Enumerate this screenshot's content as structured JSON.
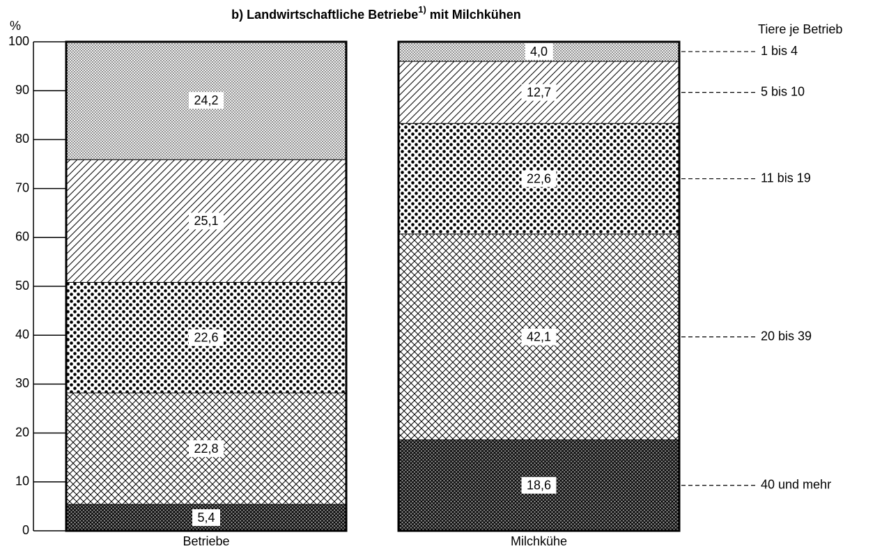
{
  "chart_data": {
    "type": "stacked_bar",
    "title_parts": [
      "b) Landwirtschaftliche Betriebe",
      "1)",
      "mit Milchkühen"
    ],
    "ylabel": "%",
    "legend_title": "Tiere je Betrieb",
    "categories": [
      "Betriebe",
      "Milchkühe"
    ],
    "series": [
      {
        "name": "40 und mehr",
        "color": "#000000",
        "values": [
          5.4,
          18.6
        ],
        "value_labels": [
          "5,4",
          "18,6"
        ]
      },
      {
        "name": "20 bis 39",
        "color": "#000000",
        "values": [
          22.8,
          42.1
        ],
        "value_labels": [
          "22,8",
          "42,1"
        ]
      },
      {
        "name": "11 bis 19",
        "color": "#000000",
        "values": [
          22.6,
          22.6
        ],
        "value_labels": [
          "22,6",
          "22,6"
        ]
      },
      {
        "name": "5 bis 10",
        "color": "#000000",
        "values": [
          25.1,
          12.7
        ],
        "value_labels": [
          "25,1",
          "12,7"
        ]
      },
      {
        "name": "1 bis 4",
        "color": "#000000",
        "values": [
          24.2,
          4.0
        ],
        "value_labels": [
          "24,2",
          "4,0"
        ]
      }
    ],
    "ylim": [
      0,
      100
    ],
    "yticks": [
      0,
      10,
      20,
      30,
      40,
      50,
      60,
      70,
      80,
      90,
      100
    ],
    "grid": false
  }
}
